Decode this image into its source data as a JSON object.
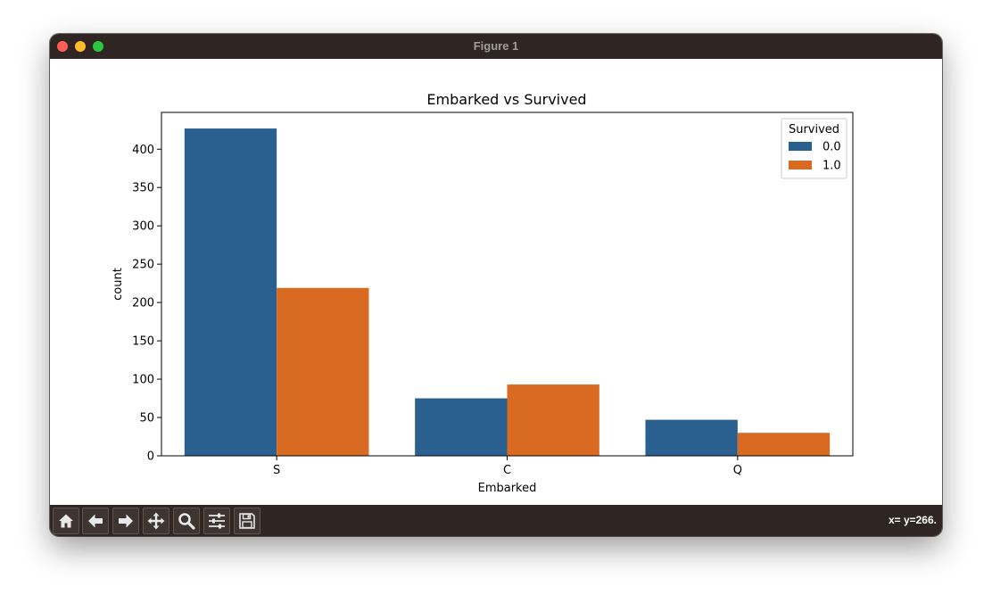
{
  "window": {
    "title": "Figure 1"
  },
  "chart_data": {
    "type": "bar",
    "title": "Embarked vs Survived",
    "xlabel": "Embarked",
    "ylabel": "count",
    "categories": [
      "S",
      "C",
      "Q"
    ],
    "series": [
      {
        "name": "0.0",
        "color": "#2a6090",
        "values": [
          427,
          75,
          47
        ]
      },
      {
        "name": "1.0",
        "color": "#d86b21",
        "values": [
          219,
          93,
          30
        ]
      }
    ],
    "ylim": [
      0,
      448
    ],
    "yticks": [
      0,
      50,
      100,
      150,
      200,
      250,
      300,
      350,
      400
    ],
    "legend": {
      "title": "Survived",
      "placement": "top-right"
    },
    "grid": false
  },
  "toolbar": {
    "buttons": [
      "home-icon",
      "back-icon",
      "forward-icon",
      "pan-icon",
      "zoom-icon",
      "configure-icon",
      "save-icon"
    ],
    "coords": "x= y=266."
  }
}
